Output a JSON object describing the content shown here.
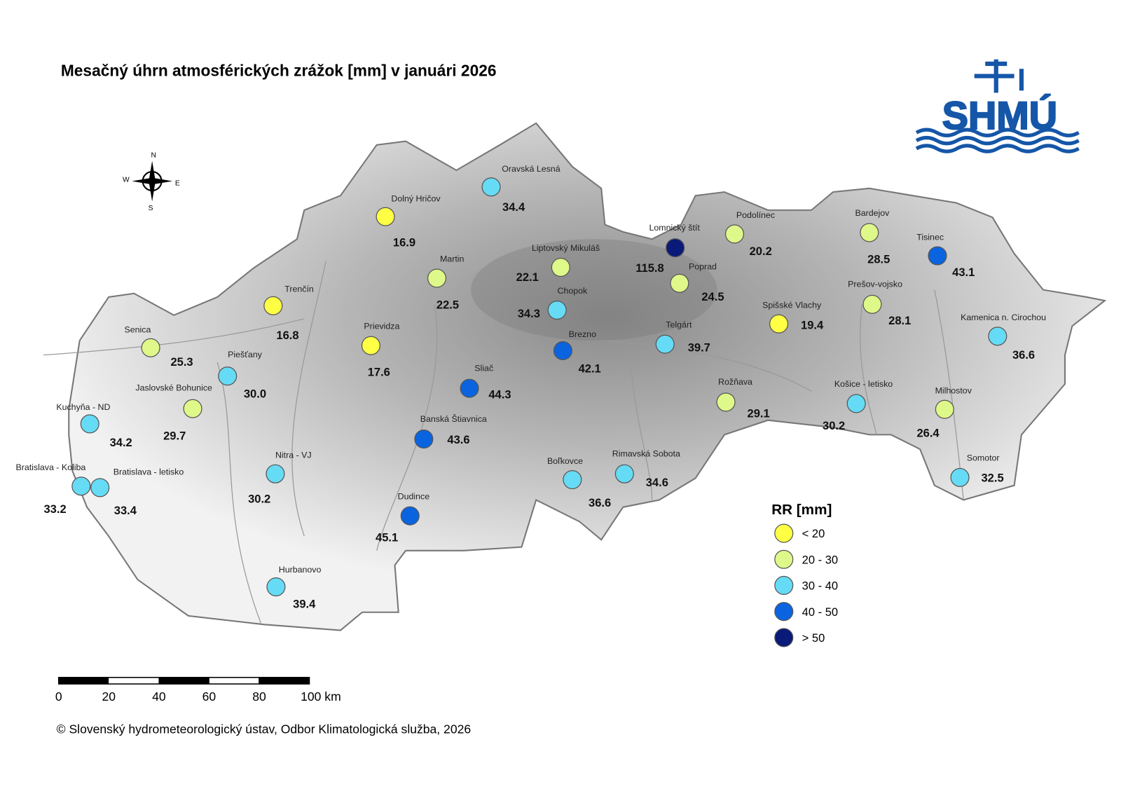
{
  "title": "Mesačný úhrn atmosférických zrážok [mm] v januári 2026",
  "logo": {
    "text": "SHMÚ"
  },
  "compass": {
    "n": "N",
    "e": "E",
    "s": "S",
    "w": "W"
  },
  "stations": [
    {
      "name": "Oravská Lesná",
      "value": "34.4",
      "color": "#66dbf5"
    },
    {
      "name": "Dolný Hričov",
      "value": "16.9",
      "color": "#ffff44"
    },
    {
      "name": "Martin",
      "value": "22.5",
      "color": "#dff88a"
    },
    {
      "name": "Liptovský Mikuláš",
      "value": "22.1",
      "color": "#dff88a"
    },
    {
      "name": "Lomnický štít",
      "value": "115.8",
      "color": "#0a1a78"
    },
    {
      "name": "Podolínec",
      "value": "20.2",
      "color": "#dff88a"
    },
    {
      "name": "Poprad",
      "value": "24.5",
      "color": "#dff88a"
    },
    {
      "name": "Bardejov",
      "value": "28.5",
      "color": "#dff88a"
    },
    {
      "name": "Tisinec",
      "value": "43.1",
      "color": "#0a64e0"
    },
    {
      "name": "Prešov-vojsko",
      "value": "28.1",
      "color": "#dff88a"
    },
    {
      "name": "Spišské Vlachy",
      "value": "19.4",
      "color": "#ffff44"
    },
    {
      "name": "Kamenica n. Cirochou",
      "value": "36.6",
      "color": "#66dbf5"
    },
    {
      "name": "Trenčín",
      "value": "16.8",
      "color": "#ffff44"
    },
    {
      "name": "Chopok",
      "value": "34.3",
      "color": "#66dbf5"
    },
    {
      "name": "Telgárt",
      "value": "39.7",
      "color": "#66dbf5"
    },
    {
      "name": "Brezno",
      "value": "42.1",
      "color": "#0a64e0"
    },
    {
      "name": "Senica",
      "value": "25.3",
      "color": "#dff88a"
    },
    {
      "name": "Prievidza",
      "value": "17.6",
      "color": "#ffff44"
    },
    {
      "name": "Piešťany",
      "value": "30.0",
      "color": "#66dbf5"
    },
    {
      "name": "Sliač",
      "value": "44.3",
      "color": "#0a64e0"
    },
    {
      "name": "Rožňava",
      "value": "29.1",
      "color": "#dff88a"
    },
    {
      "name": "Košice - letisko",
      "value": "30.2",
      "color": "#66dbf5"
    },
    {
      "name": "Milhostov",
      "value": "26.4",
      "color": "#dff88a"
    },
    {
      "name": "Jaslovské Bohunice",
      "value": "29.7",
      "color": "#dff88a"
    },
    {
      "name": "Kuchyňa - ND",
      "value": "34.2",
      "color": "#66dbf5"
    },
    {
      "name": "Banská Štiavnica",
      "value": "43.6",
      "color": "#0a64e0"
    },
    {
      "name": "Somotor",
      "value": "32.5",
      "color": "#66dbf5"
    },
    {
      "name": "Nitra - VJ",
      "value": "30.2",
      "color": "#66dbf5"
    },
    {
      "name": "Bratislava - Koliba",
      "value": "33.2",
      "color": "#66dbf5"
    },
    {
      "name": "Bratislava - letisko",
      "value": "33.4",
      "color": "#66dbf5"
    },
    {
      "name": "Boľkovce",
      "value": "36.6",
      "color": "#66dbf5"
    },
    {
      "name": "Rimavská Sobota",
      "value": "34.6",
      "color": "#66dbf5"
    },
    {
      "name": "Dudince",
      "value": "45.1",
      "color": "#0a64e0"
    },
    {
      "name": "Hurbanovo",
      "value": "39.4",
      "color": "#66dbf5"
    }
  ],
  "legend": {
    "title": "RR [mm]",
    "items": [
      {
        "label": "< 20",
        "color": "#ffff44"
      },
      {
        "label": "20 - 30",
        "color": "#dff88a"
      },
      {
        "label": "30 - 40",
        "color": "#66dbf5"
      },
      {
        "label": "40 - 50",
        "color": "#0a64e0"
      },
      {
        "label": "> 50",
        "color": "#0a1a78"
      }
    ]
  },
  "scale_bar": {
    "labels": [
      "0",
      "20",
      "40",
      "60",
      "80",
      "100 km"
    ]
  },
  "copyright": "© Slovenský hydrometeorologický ústav, Odbor Klimatologická služba, 2026"
}
